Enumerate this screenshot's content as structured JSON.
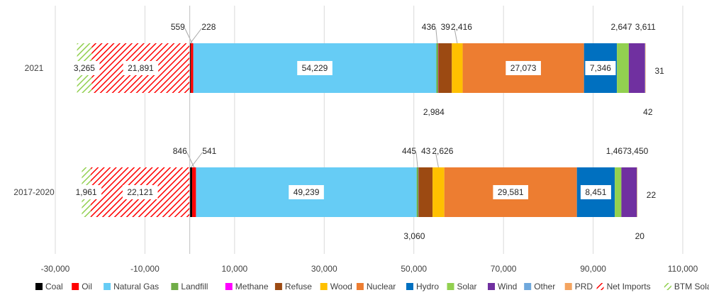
{
  "chart_data": {
    "type": "bar",
    "orientation": "horizontal",
    "stacked": true,
    "categories": [
      "2021",
      "2017-2020"
    ],
    "xlim": [
      -30000,
      110000
    ],
    "xticks": [
      -30000,
      -10000,
      10000,
      30000,
      50000,
      70000,
      90000,
      110000
    ],
    "xtick_labels": [
      "-30,000",
      "-10,000",
      "10,000",
      "30,000",
      "50,000",
      "70,000",
      "90,000",
      "110,000"
    ],
    "grid": "vertical",
    "legend_position": "bottom",
    "series": [
      {
        "name": "Coal",
        "color": "#000000",
        "values": [
          228,
          541
        ]
      },
      {
        "name": "Oil",
        "color": "#ff0000",
        "values": [
          559,
          846
        ]
      },
      {
        "name": "Natural Gas",
        "color": "#66ccf5",
        "values": [
          54229,
          49239
        ]
      },
      {
        "name": "Landfill",
        "color": "#70ad47",
        "values": [
          436,
          445
        ]
      },
      {
        "name": "Methane",
        "color": "#ff00ff",
        "values": [
          39,
          43
        ]
      },
      {
        "name": "Refuse",
        "color": "#9c4a12",
        "values": [
          2984,
          3060
        ]
      },
      {
        "name": "Wood",
        "color": "#ffc000",
        "values": [
          2416,
          2626
        ]
      },
      {
        "name": "Nuclear",
        "color": "#ed7d31",
        "values": [
          27073,
          29581
        ]
      },
      {
        "name": "Hydro",
        "color": "#0070c0",
        "values": [
          7346,
          8451
        ]
      },
      {
        "name": "Solar",
        "color": "#92d050",
        "values": [
          2647,
          1467
        ]
      },
      {
        "name": "Wind",
        "color": "#7030a0",
        "values": [
          3611,
          3450
        ]
      },
      {
        "name": "Other",
        "color": "#6fa8dc",
        "values": [
          42,
          20
        ]
      },
      {
        "name": "PRD",
        "color": "#f4a460",
        "values": [
          31,
          22
        ]
      },
      {
        "name": "Net Imports",
        "color": "#ff0000",
        "pattern": "hatch-red",
        "values": [
          -21891,
          -22121
        ]
      },
      {
        "name": "BTM Solar",
        "color": "#92d050",
        "pattern": "hatch-green",
        "values": [
          -3265,
          -1961
        ]
      }
    ],
    "data_labels": [
      [
        "228",
        "559",
        "54,229",
        "436",
        "39",
        "2,984",
        "2,416",
        "27,073",
        "7,346",
        "2,647",
        "3,611",
        "42",
        "31",
        "21,891",
        "3,265"
      ],
      [
        "541",
        "846",
        "49,239",
        "445",
        "43",
        "3,060",
        "2,626",
        "29,581",
        "8,451",
        "1,467",
        "3,450",
        "20",
        "22",
        "22,121",
        "1,961"
      ]
    ]
  }
}
